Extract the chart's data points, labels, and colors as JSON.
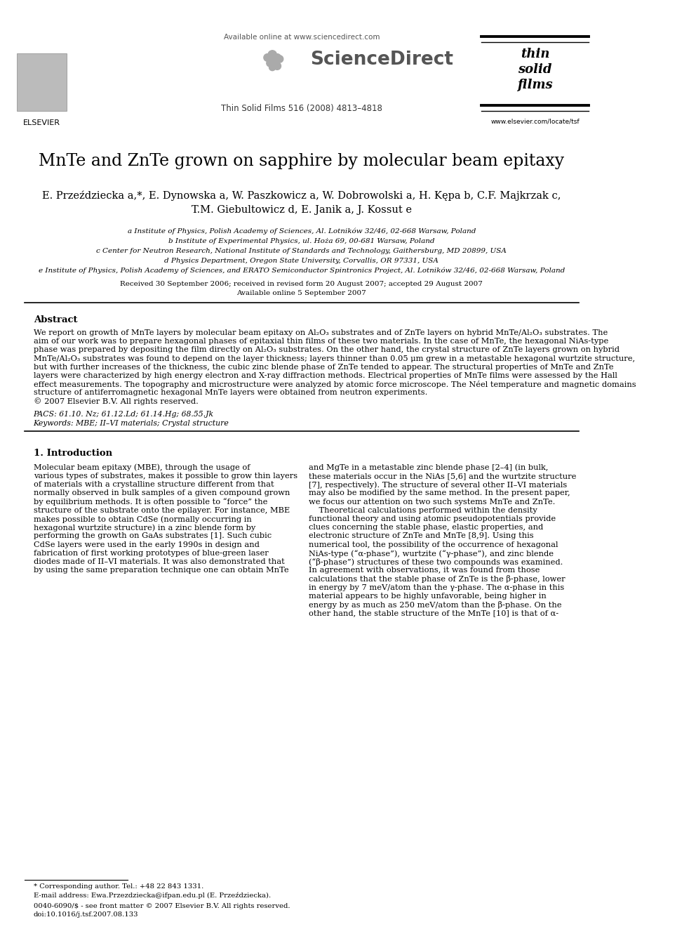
{
  "bg_color": "#ffffff",
  "header": {
    "available_online": "Available online at www.sciencedirect.com",
    "journal_info": "Thin Solid Films 516 (2008) 4813–4818",
    "elsevier_label": "ELSEVIER",
    "sciencedirect_label": "ScienceDirect",
    "tsf_line1": "thin",
    "tsf_line2": "solid",
    "tsf_line3": "films",
    "website": "www.elsevier.com/locate/tsf"
  },
  "title": "MnTe and ZnTe grown on sapphire by molecular beam epitaxy",
  "authors_line1": "E. Przeździecka a,*, E. Dynowska a, W. Paszkowicz a, W. Dobrowolski a, H. Kępa b, C.F. Majkrzak c,",
  "authors_line2": "T.M. Giebultowicz d, E. Janik a, J. Kossut e",
  "affiliations": [
    "a Institute of Physics, Polish Academy of Sciences, Al. Lotników 32/46, 02-668 Warsaw, Poland",
    "b Institute of Experimental Physics, ul. Hoża 69, 00-681 Warsaw, Poland",
    "c Center for Neutron Research, National Institute of Standards and Technology, Gaithersburg, MD 20899, USA",
    "d Physics Department, Oregon State University, Corvallis, OR 97331, USA",
    "e Institute of Physics, Polish Academy of Sciences, and ERATO Semiconductor Spintronics Project, Al. Lotników 32/46, 02-668 Warsaw, Poland"
  ],
  "dates_line1": "Received 30 September 2006; received in revised form 20 August 2007; accepted 29 August 2007",
  "dates_line2": "Available online 5 September 2007",
  "abstract_title": "Abstract",
  "abstract_lines": [
    "We report on growth of MnTe layers by molecular beam epitaxy on Al₂O₃ substrates and of ZnTe layers on hybrid MnTe/Al₂O₃ substrates. The",
    "aim of our work was to prepare hexagonal phases of epitaxial thin films of these two materials. In the case of MnTe, the hexagonal NiAs-type",
    "phase was prepared by depositing the film directly on Al₂O₃ substrates. On the other hand, the crystal structure of ZnTe layers grown on hybrid",
    "MnTe/Al₂O₃ substrates was found to depend on the layer thickness; layers thinner than 0.05 μm grew in a metastable hexagonal wurtzite structure,",
    "but with further increases of the thickness, the cubic zinc blende phase of ZnTe tended to appear. The structural properties of MnTe and ZnTe",
    "layers were characterized by high energy electron and X-ray diffraction methods. Electrical properties of MnTe films were assessed by the Hall",
    "effect measurements. The topography and microstructure were analyzed by atomic force microscope. The Néel temperature and magnetic domains",
    "structure of antiferromagnetic hexagonal MnTe layers were obtained from neutron experiments.",
    "© 2007 Elsevier B.V. All rights reserved."
  ],
  "pacs": "PACS: 61.10. Nz; 61.12.Ld; 61.14.Hg; 68.55.Jk",
  "keywords": "Keywords: MBE; II–VI materials; Crystal structure",
  "intro_title": "1. Introduction",
  "intro_col1_lines": [
    "Molecular beam epitaxy (MBE), through the usage of",
    "various types of substrates, makes it possible to grow thin layers",
    "of materials with a crystalline structure different from that",
    "normally observed in bulk samples of a given compound grown",
    "by equilibrium methods. It is often possible to “force” the",
    "structure of the substrate onto the epilayer. For instance, MBE",
    "makes possible to obtain CdSe (normally occurring in",
    "hexagonal wurtzite structure) in a zinc blende form by",
    "performing the growth on GaAs substrates [1]. Such cubic",
    "CdSe layers were used in the early 1990s in design and",
    "fabrication of first working prototypes of blue-green laser",
    "diodes made of II–VI materials. It was also demonstrated that",
    "by using the same preparation technique one can obtain MnTe"
  ],
  "intro_col2_lines": [
    "and MgTe in a metastable zinc blende phase [2–4] (in bulk,",
    "these materials occur in the NiAs [5,6] and the wurtzite structure",
    "[7], respectively). The structure of several other II–VI materials",
    "may also be modified by the same method. In the present paper,",
    "we focus our attention on two such systems MnTe and ZnTe.",
    "    Theoretical calculations performed within the density",
    "functional theory and using atomic pseudopotentials provide",
    "clues concerning the stable phase, elastic properties, and",
    "electronic structure of ZnTe and MnTe [8,9]. Using this",
    "numerical tool, the possibility of the occurrence of hexagonal",
    "NiAs-type (“α-phase”), wurtzite (“γ-phase”), and zinc blende",
    "(“β-phase”) structures of these two compounds was examined.",
    "In agreement with observations, it was found from those",
    "calculations that the stable phase of ZnTe is the β-phase, lower",
    "in energy by 7 meV/atom than the γ-phase. The α-phase in this",
    "material appears to be highly unfavorable, being higher in",
    "energy by as much as 250 meV/atom than the β-phase. On the",
    "other hand, the stable structure of the MnTe [10] is that of α-"
  ],
  "footnote_star": "* Corresponding author. Tel.: +48 22 843 1331.",
  "footnote_email": "E-mail address: Ewa.Przezdziecka@ifpan.edu.pl (E. Przeździecka).",
  "footer_issn": "0040-6090/$ - see front matter © 2007 Elsevier B.V. All rights reserved.",
  "footer_doi": "doi:10.1016/j.tsf.2007.08.133"
}
